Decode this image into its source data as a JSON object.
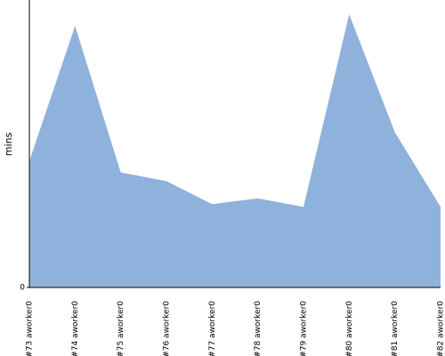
{
  "chart_data": {
    "type": "area",
    "y_label": "mins",
    "categories": [
      "#73 aworker0",
      "#74 aworker0",
      "#75 aworker0",
      "#76 aworker0",
      "#77 aworker0",
      "#78 aworker0",
      "#79 aworker0",
      "#80 aworker0",
      "#81 aworker0",
      "#82 aworker0"
    ],
    "values": [
      44,
      91,
      40,
      37,
      29,
      31,
      28,
      95,
      54,
      28
    ],
    "color": "#8fb2dc",
    "ylim": [
      0,
      100
    ],
    "yticks": [
      0
    ]
  }
}
